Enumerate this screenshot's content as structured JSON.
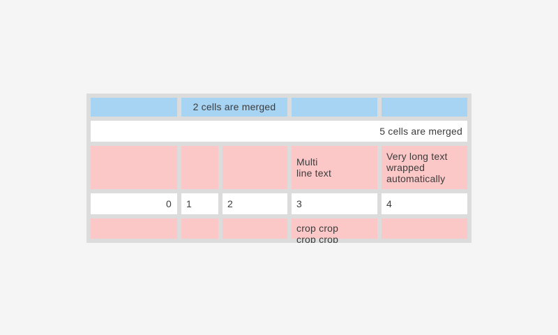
{
  "table": {
    "colors": {
      "header_blue": "#a8d4f4",
      "row_pink": "#fbc8c7",
      "grid_gray": "#dcdcdc",
      "page_bg": "#f5f5f5",
      "text": "#3b3b3b"
    },
    "row1": {
      "merged_label": "2 cells are merged"
    },
    "row2": {
      "merged_label": "5 cells are merged"
    },
    "row3": {
      "col4": "Multi\nline text",
      "col5": "Very long text\nwrapped\nautomatically"
    },
    "row4": {
      "col1": "0",
      "col2": "1",
      "col3": "2",
      "col4": "3",
      "col5": "4"
    },
    "row5": {
      "col4": "crop crop\ncrop crop"
    }
  }
}
